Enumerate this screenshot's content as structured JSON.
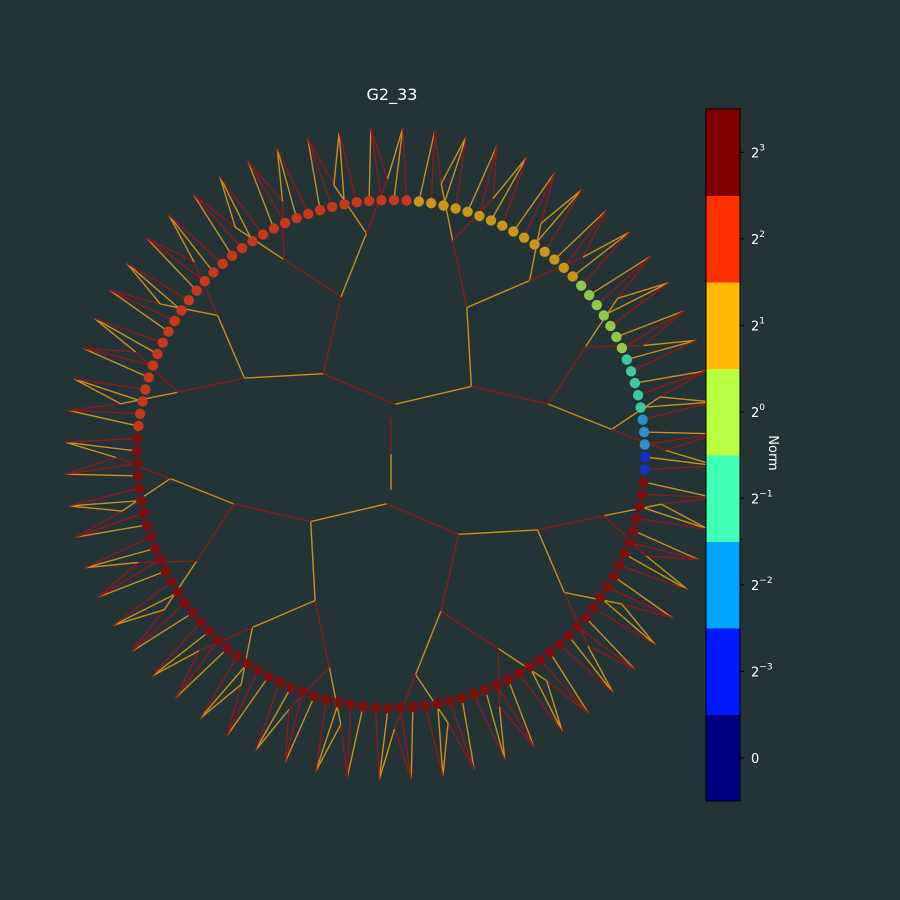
{
  "chart_data": {
    "type": "radial-tree",
    "title": "G2_33",
    "tree": {
      "depth": 7,
      "branching": 2,
      "leaf_count": 128
    },
    "edge_colors": [
      "#8b1a1a",
      "#c8901e"
    ],
    "leaf_norm_exponents": [
      3,
      3,
      3,
      3,
      3,
      3,
      3,
      3,
      3,
      3,
      3,
      3,
      3,
      3,
      3,
      3,
      3,
      3,
      3,
      3,
      3,
      3,
      3,
      3,
      3,
      3,
      3,
      3,
      3,
      3,
      3,
      3,
      3,
      3,
      3,
      3,
      3,
      3,
      3,
      3,
      3,
      3,
      3,
      3,
      3,
      3,
      3,
      3,
      3,
      3,
      3,
      3,
      3,
      3,
      3,
      3,
      3,
      3,
      3,
      3,
      3,
      3,
      3,
      3,
      2,
      2,
      2,
      2,
      2,
      2,
      2,
      2,
      2,
      2,
      2,
      2,
      2,
      2,
      2,
      2,
      2,
      2,
      2,
      2,
      2,
      2,
      2,
      2,
      2,
      2,
      2,
      2,
      2,
      2,
      2,
      2,
      1,
      1,
      1,
      1,
      1,
      1,
      1,
      1,
      1,
      1,
      1,
      1,
      1,
      1,
      1,
      0,
      0,
      0,
      0,
      0,
      0,
      0,
      -1,
      -1,
      -1,
      -1,
      -1,
      -2,
      -2,
      -2,
      -3,
      -3
    ],
    "colorbar": {
      "label": "Norm",
      "levels": [
        {
          "label_base": "0",
          "label_exp": "",
          "color": "#000080"
        },
        {
          "label_base": "2",
          "label_exp": "−3",
          "color": "#0019ff"
        },
        {
          "label_base": "2",
          "label_exp": "−2",
          "color": "#00a4ff"
        },
        {
          "label_base": "2",
          "label_exp": "−1",
          "color": "#40ffb7"
        },
        {
          "label_base": "2",
          "label_exp": "0",
          "color": "#b7ff40"
        },
        {
          "label_base": "2",
          "label_exp": "1",
          "color": "#ffb900"
        },
        {
          "label_base": "2",
          "label_exp": "2",
          "color": "#ff3000"
        },
        {
          "label_base": "2",
          "label_exp": "3",
          "color": "#800000"
        }
      ]
    },
    "background": "#243336"
  }
}
